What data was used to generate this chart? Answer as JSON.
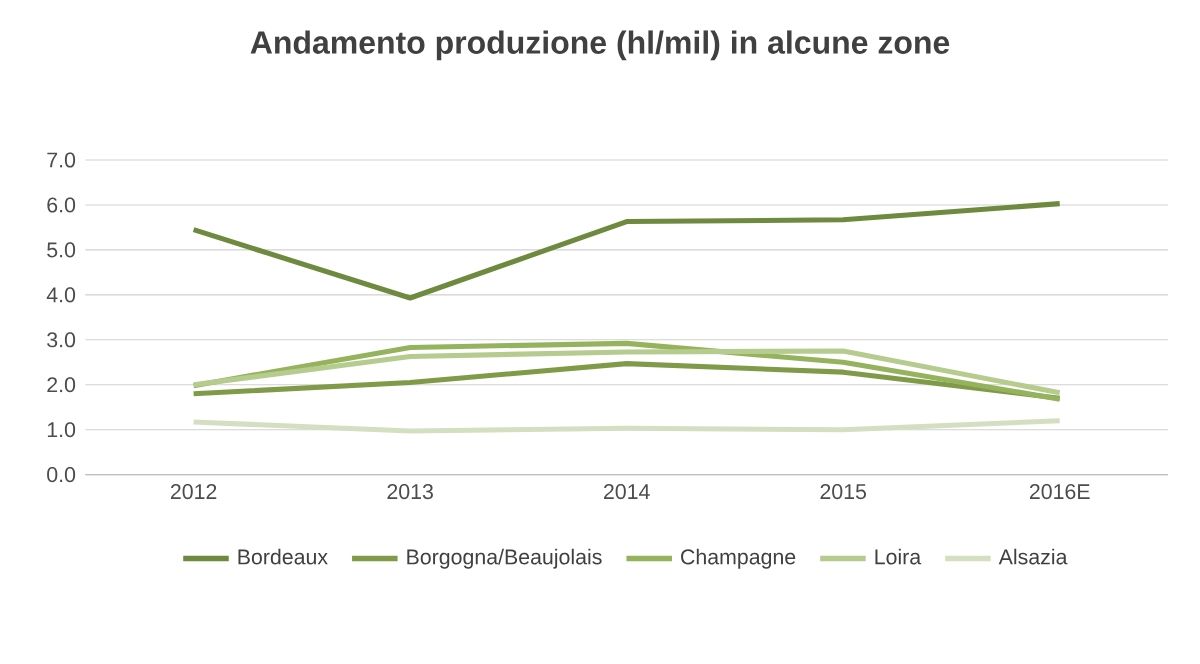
{
  "chart_data": {
    "type": "line",
    "title": "Andamento produzione (hl/mil) in alcune zone",
    "categories": [
      "2012",
      "2013",
      "2014",
      "2015",
      "2016E"
    ],
    "series": [
      {
        "name": "Bordeaux",
        "color": "#6e8a3e",
        "values": [
          5.45,
          3.93,
          5.63,
          5.67,
          6.03
        ]
      },
      {
        "name": "Borgogna/Beaujolais",
        "color": "#7f9b48",
        "values": [
          1.8,
          2.05,
          2.47,
          2.28,
          1.7
        ]
      },
      {
        "name": "Champagne",
        "color": "#95b35c",
        "values": [
          1.98,
          2.83,
          2.92,
          2.5,
          1.68
        ]
      },
      {
        "name": "Loira",
        "color": "#b5cc8e",
        "values": [
          2.0,
          2.63,
          2.73,
          2.75,
          1.82
        ]
      },
      {
        "name": "Alsazia",
        "color": "#d3dfc0",
        "values": [
          1.17,
          0.97,
          1.03,
          1.0,
          1.2
        ]
      }
    ],
    "ylim": [
      0,
      7
    ],
    "yticks": [
      {
        "value": 0,
        "label": "0.0"
      },
      {
        "value": 1,
        "label": "1.0"
      },
      {
        "value": 2,
        "label": "2.0"
      },
      {
        "value": 3,
        "label": "3.0"
      },
      {
        "value": 4,
        "label": "4.0"
      },
      {
        "value": 5,
        "label": "5.0"
      },
      {
        "value": 6,
        "label": "6.0"
      },
      {
        "value": 7,
        "label": "7.0"
      }
    ],
    "grid": "y",
    "legend": "bottom",
    "marker": "none",
    "line_style": "solid"
  }
}
